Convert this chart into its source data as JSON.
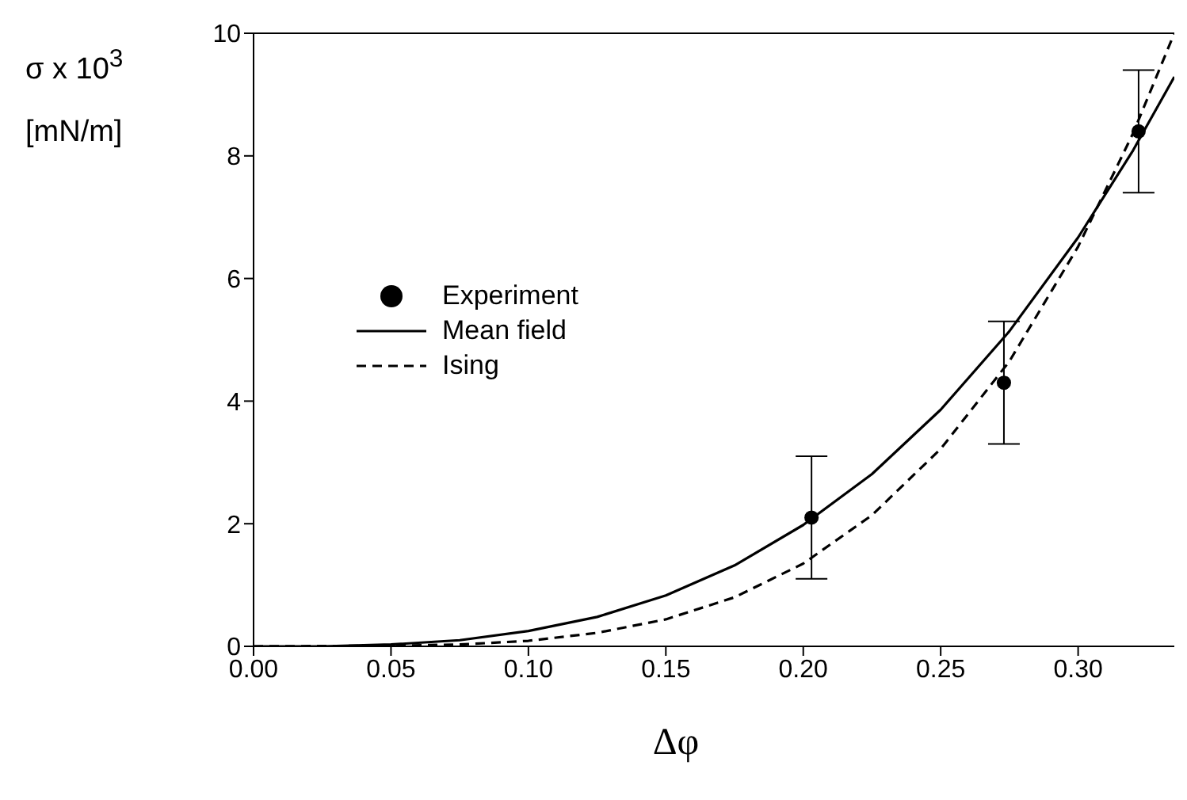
{
  "chart_data": {
    "type": "line",
    "xlabel": "Δφ",
    "ylabel": "σ x 10$^{3}$ [mN/m]",
    "xlim": [
      0,
      0.335
    ],
    "xticks": [
      {
        "value": 0,
        "label": "0.00"
      },
      {
        "value": 0.05,
        "label": "0.05"
      },
      {
        "value": 0.1,
        "label": "0.10"
      },
      {
        "value": 0.15,
        "label": "0.15"
      },
      {
        "value": 0.2,
        "label": "0.20"
      },
      {
        "value": 0.25,
        "label": "0.25"
      },
      {
        "value": 0.3,
        "label": "0.30"
      }
    ],
    "ylim": [
      0,
      10
    ],
    "yticks": [
      0,
      2,
      4,
      6,
      8,
      10
    ],
    "legend": "left",
    "series": [
      {
        "name": "Experiment",
        "type": "scatter",
        "color": "#000000",
        "marker": "circle",
        "x": [
          0.203,
          0.273,
          0.322
        ],
        "values": [
          2.1,
          4.3,
          8.4
        ],
        "errors": [
          1,
          1,
          1
        ]
      },
      {
        "name": "Mean field",
        "color": "#000000",
        "line_style": "solid",
        "marker": "none",
        "x": [
          0,
          0.025,
          0.05,
          0.075,
          0.1,
          0.125,
          0.15,
          0.175,
          0.2,
          0.225,
          0.25,
          0.275,
          0.3,
          0.32,
          0.335
        ],
        "values": [
          0,
          0,
          0.03,
          0.1,
          0.25,
          0.48,
          0.83,
          1.32,
          1.98,
          2.81,
          3.86,
          5.14,
          6.67,
          8.09,
          9.29
        ]
      },
      {
        "name": "Ising",
        "color": "#000000",
        "line_style": "dashed",
        "marker": "none",
        "x": [
          0,
          0.05,
          0.075,
          0.1,
          0.125,
          0.15,
          0.175,
          0.2,
          0.225,
          0.25,
          0.275,
          0.3,
          0.32,
          0.335
        ],
        "values": [
          0,
          0.01,
          0.03,
          0.09,
          0.22,
          0.44,
          0.8,
          1.35,
          2.14,
          3.22,
          4.65,
          6.52,
          8.37,
          10
        ]
      }
    ]
  }
}
